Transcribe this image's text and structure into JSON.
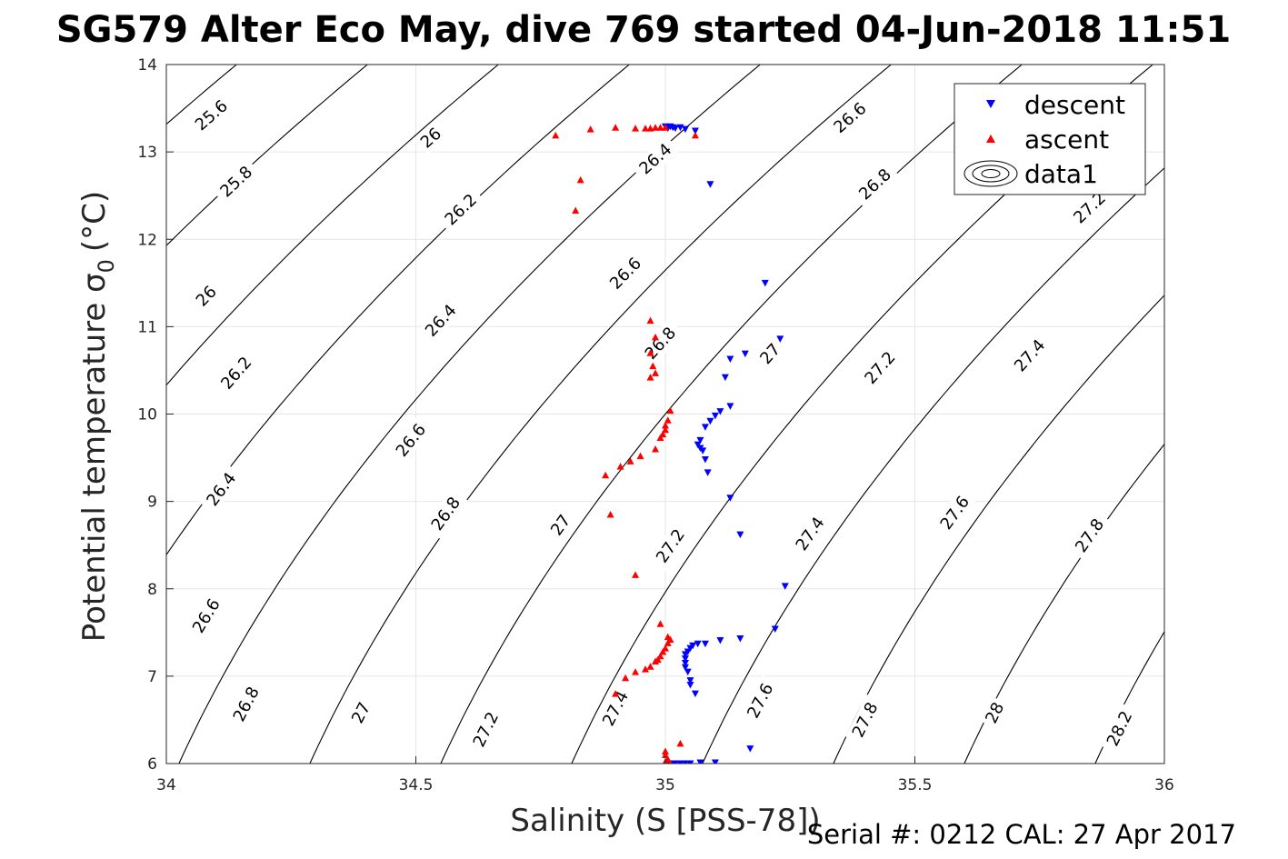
{
  "chart_data": {
    "type": "scatter",
    "title": "SG579 Alter Eco May, dive 769 started 04-Jun-2018 11:51",
    "xlabel": "Salinity (S [PSS-78])",
    "ylabel": "Potential temperature σ",
    "ylabel_sub": "0",
    "ylabel_unit": "(°C)",
    "xlim": [
      34,
      36
    ],
    "ylim": [
      6,
      14
    ],
    "xticks": [
      "34",
      "34.5",
      "35",
      "35.5",
      "36"
    ],
    "yticks": [
      "6",
      "7",
      "8",
      "9",
      "10",
      "11",
      "12",
      "13",
      "14"
    ],
    "grid": true,
    "legend_position": "top-right",
    "legend": [
      "descent",
      "ascent",
      "data1"
    ],
    "contour_levels": [
      25.6,
      25.8,
      26,
      26.2,
      26.4,
      26.6,
      26.8,
      27,
      27.2,
      27.4,
      27.6,
      27.8,
      28,
      28.2
    ],
    "contour_labels": [
      {
        "text": "25.6",
        "x": 34.09,
        "y": 13.42
      },
      {
        "text": "26",
        "x": 34.53,
        "y": 13.16
      },
      {
        "text": "26.4",
        "x": 34.98,
        "y": 12.92
      },
      {
        "text": "26.6",
        "x": 35.37,
        "y": 13.39
      },
      {
        "text": "25.8",
        "x": 34.14,
        "y": 12.66
      },
      {
        "text": "26.2",
        "x": 34.59,
        "y": 12.34
      },
      {
        "text": "26.8",
        "x": 35.42,
        "y": 12.63
      },
      {
        "text": "27.2",
        "x": 35.85,
        "y": 12.36
      },
      {
        "text": "26",
        "x": 34.08,
        "y": 11.35
      },
      {
        "text": "26.6",
        "x": 34.92,
        "y": 11.61
      },
      {
        "text": "26.4",
        "x": 34.55,
        "y": 11.07
      },
      {
        "text": "26.8",
        "x": 34.99,
        "y": 10.81
      },
      {
        "text": "27",
        "x": 35.21,
        "y": 10.69
      },
      {
        "text": "27.2",
        "x": 35.43,
        "y": 10.53
      },
      {
        "text": "27.4",
        "x": 35.73,
        "y": 10.67
      },
      {
        "text": "26.2",
        "x": 34.14,
        "y": 10.47
      },
      {
        "text": "26.6",
        "x": 34.49,
        "y": 9.7
      },
      {
        "text": "26.4",
        "x": 34.11,
        "y": 9.14
      },
      {
        "text": "26.8",
        "x": 34.56,
        "y": 8.86
      },
      {
        "text": "27",
        "x": 34.79,
        "y": 8.73
      },
      {
        "text": "27.2",
        "x": 35.01,
        "y": 8.49
      },
      {
        "text": "27.4",
        "x": 35.29,
        "y": 8.63
      },
      {
        "text": "27.6",
        "x": 35.58,
        "y": 8.87
      },
      {
        "text": "27.8",
        "x": 35.85,
        "y": 8.61
      },
      {
        "text": "26.6",
        "x": 34.08,
        "y": 7.69
      },
      {
        "text": "26.8",
        "x": 34.16,
        "y": 6.68
      },
      {
        "text": "27",
        "x": 34.39,
        "y": 6.58
      },
      {
        "text": "27.2",
        "x": 34.64,
        "y": 6.39
      },
      {
        "text": "27.4",
        "x": 34.9,
        "y": 6.63
      },
      {
        "text": "27.6",
        "x": 35.19,
        "y": 6.72
      },
      {
        "text": "27.8",
        "x": 35.4,
        "y": 6.5
      },
      {
        "text": "28",
        "x": 35.66,
        "y": 6.58
      },
      {
        "text": "28.2",
        "x": 35.91,
        "y": 6.4
      }
    ],
    "series": [
      {
        "name": "descent",
        "color": "#0000ff",
        "marker": "triangle-down",
        "points": [
          [
            35.0,
            13.29
          ],
          [
            35.01,
            13.29
          ],
          [
            35.015,
            13.28
          ],
          [
            35.02,
            13.27
          ],
          [
            35.005,
            13.27
          ],
          [
            35.03,
            13.28
          ],
          [
            35.04,
            13.26
          ],
          [
            35.06,
            13.24
          ],
          [
            35.09,
            12.63
          ],
          [
            35.2,
            11.5
          ],
          [
            35.23,
            10.86
          ],
          [
            35.16,
            10.69
          ],
          [
            35.13,
            10.63
          ],
          [
            35.12,
            10.42
          ],
          [
            35.13,
            10.09
          ],
          [
            35.11,
            10.03
          ],
          [
            35.1,
            9.98
          ],
          [
            35.09,
            9.92
          ],
          [
            35.08,
            9.85
          ],
          [
            35.07,
            9.7
          ],
          [
            35.065,
            9.65
          ],
          [
            35.07,
            9.61
          ],
          [
            35.075,
            9.58
          ],
          [
            35.08,
            9.48
          ],
          [
            35.085,
            9.33
          ],
          [
            35.13,
            9.04
          ],
          [
            35.15,
            8.62
          ],
          [
            35.24,
            8.03
          ],
          [
            35.22,
            7.54
          ],
          [
            35.15,
            7.43
          ],
          [
            35.11,
            7.41
          ],
          [
            35.08,
            7.37
          ],
          [
            35.065,
            7.37
          ],
          [
            35.055,
            7.35
          ],
          [
            35.05,
            7.32
          ],
          [
            35.045,
            7.28
          ],
          [
            35.04,
            7.25
          ],
          [
            35.04,
            7.2
          ],
          [
            35.04,
            7.15
          ],
          [
            35.04,
            7.1
          ],
          [
            35.045,
            7.05
          ],
          [
            35.05,
            6.95
          ],
          [
            35.05,
            6.9
          ],
          [
            35.06,
            6.8
          ],
          [
            35.17,
            6.17
          ],
          [
            35.1,
            6.01
          ],
          [
            35.07,
            6.01
          ],
          [
            35.05,
            6.0
          ],
          [
            35.04,
            6.0
          ],
          [
            35.03,
            6.0
          ],
          [
            35.02,
            6.0
          ],
          [
            35.015,
            6.0
          ],
          [
            35.01,
            6.0
          ],
          [
            35.005,
            6.0
          ]
        ]
      },
      {
        "name": "ascent",
        "color": "#ff0000",
        "marker": "triangle-up",
        "points": [
          [
            34.78,
            13.19
          ],
          [
            34.85,
            13.26
          ],
          [
            34.9,
            13.28
          ],
          [
            34.94,
            13.27
          ],
          [
            34.96,
            13.27
          ],
          [
            34.97,
            13.27
          ],
          [
            34.98,
            13.28
          ],
          [
            34.99,
            13.28
          ],
          [
            35.0,
            13.28
          ],
          [
            35.06,
            13.19
          ],
          [
            34.83,
            12.68
          ],
          [
            34.82,
            12.33
          ],
          [
            34.97,
            11.07
          ],
          [
            34.98,
            10.88
          ],
          [
            34.97,
            10.7
          ],
          [
            34.975,
            10.55
          ],
          [
            34.98,
            10.47
          ],
          [
            34.97,
            10.42
          ],
          [
            35.01,
            10.04
          ],
          [
            35.005,
            9.93
          ],
          [
            35.0,
            9.87
          ],
          [
            35.0,
            9.82
          ],
          [
            34.995,
            9.77
          ],
          [
            34.99,
            9.73
          ],
          [
            34.98,
            9.6
          ],
          [
            34.95,
            9.52
          ],
          [
            34.93,
            9.46
          ],
          [
            34.91,
            9.4
          ],
          [
            34.88,
            9.3
          ],
          [
            34.89,
            8.85
          ],
          [
            34.94,
            8.16
          ],
          [
            34.99,
            7.6
          ],
          [
            35.005,
            7.45
          ],
          [
            35.01,
            7.42
          ],
          [
            35.005,
            7.38
          ],
          [
            35.0,
            7.32
          ],
          [
            34.995,
            7.28
          ],
          [
            34.99,
            7.23
          ],
          [
            34.985,
            7.19
          ],
          [
            34.98,
            7.17
          ],
          [
            34.97,
            7.11
          ],
          [
            34.96,
            7.08
          ],
          [
            34.94,
            7.05
          ],
          [
            34.92,
            6.98
          ],
          [
            34.9,
            6.8
          ],
          [
            35.03,
            6.23
          ],
          [
            35.0,
            6.14
          ],
          [
            35.0,
            6.1
          ],
          [
            35.005,
            6.05
          ],
          [
            35.0,
            6.02
          ],
          [
            35.01,
            6.0
          ]
        ]
      }
    ],
    "contour_series": "data1"
  },
  "footer": "Serial #: 0212  CAL: 27 Apr 2017"
}
